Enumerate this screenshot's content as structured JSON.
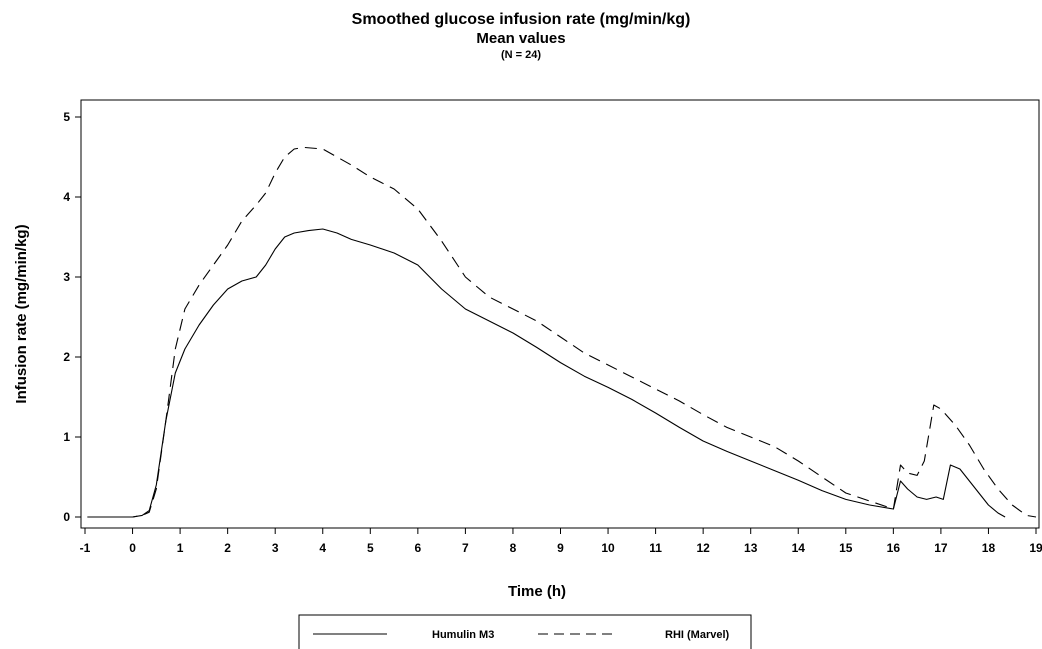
{
  "chart_data": {
    "type": "line",
    "title": "Smoothed glucose infusion rate (mg/min/kg)",
    "subtitle": "Mean values",
    "note": "(N = 24)",
    "xlabel": "Time (h)",
    "ylabel": "Infusion rate (mg/min/kg)",
    "xlim": [
      -1,
      19
    ],
    "ylim": [
      0,
      5
    ],
    "xticks": [
      "-1",
      "0",
      "1",
      "2",
      "3",
      "4",
      "5",
      "6",
      "7",
      "8",
      "9",
      "10",
      "11",
      "12",
      "13",
      "14",
      "15",
      "16",
      "17",
      "18",
      "19"
    ],
    "yticks": [
      "0",
      "1",
      "2",
      "3",
      "4",
      "5"
    ],
    "grid": false,
    "legend_position": "bottom",
    "series": [
      {
        "name": "Humulin M3",
        "style": "solid",
        "color": "#000000",
        "x": [
          -0.95,
          0,
          0.2,
          0.35,
          0.5,
          0.7,
          0.9,
          1.1,
          1.4,
          1.7,
          2.0,
          2.3,
          2.6,
          2.8,
          3.0,
          3.2,
          3.4,
          3.7,
          4.0,
          4.3,
          4.6,
          5.0,
          5.5,
          6.0,
          6.5,
          7.0,
          7.5,
          8.0,
          8.5,
          9.0,
          9.5,
          10.0,
          10.5,
          11.0,
          11.5,
          12.0,
          12.5,
          13.0,
          13.5,
          14.0,
          14.5,
          15.0,
          15.5,
          16.0,
          16.15,
          16.3,
          16.5,
          16.7,
          16.9,
          17.05,
          17.2,
          17.4,
          17.6,
          17.8,
          18.0,
          18.2,
          18.35
        ],
        "y": [
          0,
          0,
          0.02,
          0.08,
          0.4,
          1.2,
          1.8,
          2.1,
          2.4,
          2.65,
          2.85,
          2.95,
          3.0,
          3.15,
          3.35,
          3.5,
          3.55,
          3.58,
          3.6,
          3.55,
          3.47,
          3.4,
          3.3,
          3.15,
          2.85,
          2.6,
          2.45,
          2.3,
          2.12,
          1.93,
          1.76,
          1.62,
          1.47,
          1.3,
          1.12,
          0.95,
          0.82,
          0.7,
          0.58,
          0.46,
          0.33,
          0.22,
          0.15,
          0.1,
          0.45,
          0.35,
          0.25,
          0.22,
          0.25,
          0.22,
          0.65,
          0.6,
          0.45,
          0.3,
          0.15,
          0.05,
          0.0
        ]
      },
      {
        "name": "RHI (Marvel)",
        "style": "dashed",
        "color": "#000000",
        "x": [
          -0.95,
          0,
          0.2,
          0.35,
          0.5,
          0.7,
          0.9,
          1.1,
          1.4,
          1.7,
          2.0,
          2.3,
          2.6,
          2.8,
          3.0,
          3.2,
          3.4,
          3.6,
          4.0,
          4.3,
          4.6,
          5.0,
          5.5,
          6.0,
          6.5,
          7.0,
          7.5,
          8.0,
          8.5,
          9.0,
          9.5,
          10.0,
          10.5,
          11.0,
          11.5,
          12.0,
          12.5,
          13.0,
          13.5,
          14.0,
          14.5,
          15.0,
          15.5,
          16.0,
          16.15,
          16.3,
          16.5,
          16.65,
          16.85,
          17.0,
          17.3,
          17.6,
          17.9,
          18.2,
          18.5,
          18.8,
          19.0
        ],
        "y": [
          0,
          0,
          0.02,
          0.06,
          0.35,
          1.2,
          2.1,
          2.6,
          2.9,
          3.15,
          3.4,
          3.7,
          3.9,
          4.05,
          4.3,
          4.5,
          4.6,
          4.62,
          4.6,
          4.5,
          4.4,
          4.25,
          4.1,
          3.85,
          3.45,
          3.0,
          2.75,
          2.6,
          2.45,
          2.25,
          2.05,
          1.9,
          1.75,
          1.6,
          1.45,
          1.28,
          1.12,
          1.0,
          0.88,
          0.7,
          0.5,
          0.3,
          0.2,
          0.1,
          0.65,
          0.55,
          0.52,
          0.7,
          1.4,
          1.35,
          1.15,
          0.9,
          0.6,
          0.35,
          0.15,
          0.02,
          0.0
        ]
      }
    ]
  }
}
